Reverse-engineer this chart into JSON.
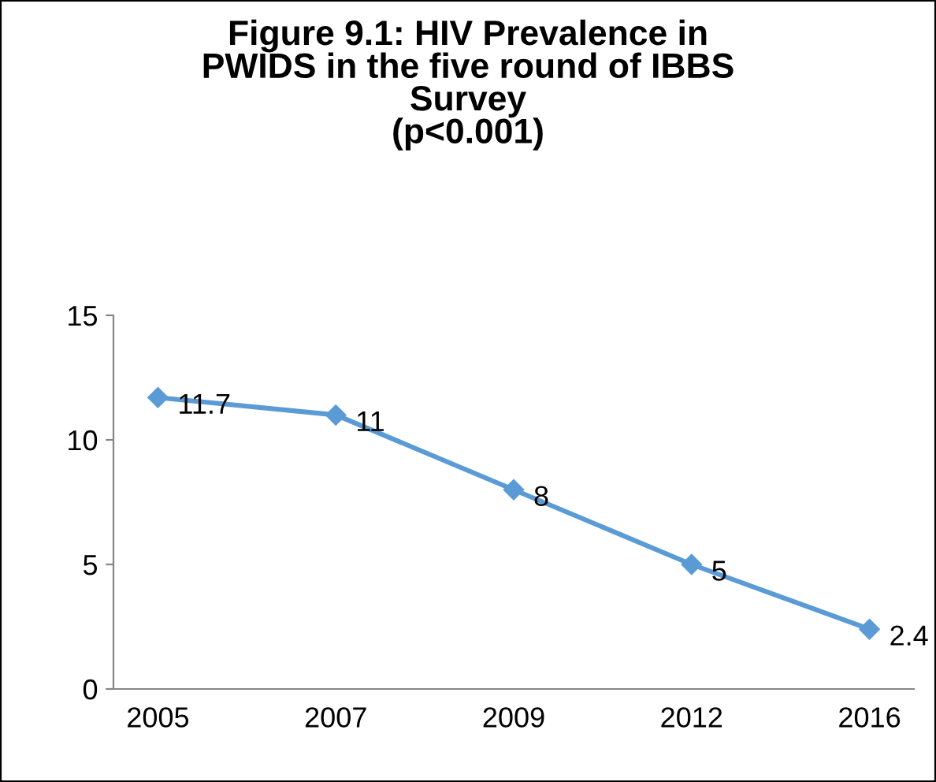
{
  "chart_data": {
    "type": "line",
    "title": "Figure 9.1: HIV Prevalence in\nPWIDS in the five round of IBBS\nSurvey\n(p<0.001)",
    "categories": [
      "2005",
      "2007",
      "2009",
      "2012",
      "2016"
    ],
    "series": [
      {
        "color": "#5b9bd5",
        "values": [
          11.7,
          11,
          8,
          5,
          2.4
        ]
      }
    ],
    "ylim": [
      0,
      15
    ],
    "yticks": [
      0,
      5,
      10,
      15
    ],
    "grid": false,
    "marker": "diamond",
    "line_style": "solid",
    "data_labels": true
  }
}
